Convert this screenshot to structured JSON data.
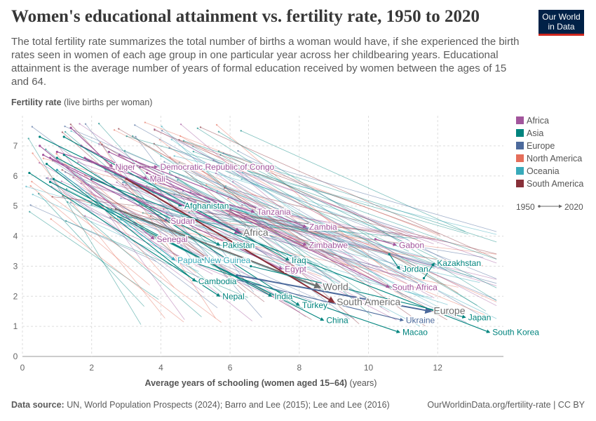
{
  "header": {
    "title": "Women's educational attainment vs. fertility rate, 1950 to 2020",
    "subtitle": "The total fertility rate summarizes the total number of births a woman would have, if she experienced the birth rates seen in women of each age group in one particular year across her childbearing years. Educational attainment is the average number of years of formal education received by women between the ages of 15 and 64.",
    "logo_line1": "Our World",
    "logo_line2": "in Data"
  },
  "footer": {
    "source_label": "Data source:",
    "source_text": "UN, World Population Prospects (2024); Barro and Lee (2015); Lee and Lee (2016)",
    "url": "OurWorldinData.org/fertility-rate | CC BY"
  },
  "chart_data": {
    "type": "scatter",
    "subtype": "connected-arrows",
    "ylabel_bold": "Fertility rate",
    "ylabel_rest": "(live births per woman)",
    "xlabel_bold": "Average years of schooling (women aged 15–64)",
    "xlabel_rest": "(years)",
    "xlim": [
      0,
      13.9
    ],
    "ylim": [
      0,
      8
    ],
    "xticks": [
      0,
      2,
      4,
      6,
      8,
      10,
      12
    ],
    "yticks": [
      0,
      1,
      2,
      3,
      4,
      5,
      6,
      7
    ],
    "grid": true,
    "legend_position": "right",
    "time_legend": {
      "start": "1950",
      "end": "2020"
    },
    "regions": [
      {
        "name": "Africa",
        "color": "#a2559c"
      },
      {
        "name": "Asia",
        "color": "#00847e"
      },
      {
        "name": "Europe",
        "color": "#4c6a9c"
      },
      {
        "name": "North America",
        "color": "#e56e5a"
      },
      {
        "name": "Oceania",
        "color": "#38aaba"
      },
      {
        "name": "South America",
        "color": "#883039"
      }
    ],
    "labeled_series": [
      {
        "name": "Niger",
        "region": "Africa",
        "x1": 1.4,
        "y1": 7.6,
        "x2": 2.6,
        "y2": 6.3
      },
      {
        "name": "Democratic Republic of Congo",
        "region": "Africa",
        "x1": 3.4,
        "y1": 6.3,
        "x2": 3.9,
        "y2": 6.3
      },
      {
        "name": "Mali",
        "region": "Africa",
        "x1": 1.7,
        "y1": 7.0,
        "x2": 3.6,
        "y2": 5.9
      },
      {
        "name": "Afghanistan",
        "region": "Asia",
        "x1": 0.5,
        "y1": 7.3,
        "x2": 4.6,
        "y2": 5.0
      },
      {
        "name": "Tanzania",
        "region": "Africa",
        "x1": 1.0,
        "y1": 6.8,
        "x2": 6.7,
        "y2": 4.8
      },
      {
        "name": "Sudan",
        "region": "Africa",
        "x1": 0.6,
        "y1": 6.7,
        "x2": 4.2,
        "y2": 4.5
      },
      {
        "name": "Zambia",
        "region": "Africa",
        "x1": 2.8,
        "y1": 6.7,
        "x2": 8.2,
        "y2": 4.3
      },
      {
        "name": "Africa",
        "region": "Africa",
        "x1": 1.8,
        "y1": 6.6,
        "x2": 6.3,
        "y2": 4.1
      },
      {
        "name": "Senegal",
        "region": "Africa",
        "x1": 0.5,
        "y1": 7.0,
        "x2": 3.8,
        "y2": 3.9
      },
      {
        "name": "Pakistan",
        "region": "Asia",
        "x1": 1.0,
        "y1": 6.6,
        "x2": 5.7,
        "y2": 3.7
      },
      {
        "name": "Zimbabwe",
        "region": "Africa",
        "x1": 2.5,
        "y1": 6.8,
        "x2": 8.2,
        "y2": 3.7
      },
      {
        "name": "Gabon",
        "region": "Africa",
        "x1": 10.2,
        "y1": 3.9,
        "x2": 10.8,
        "y2": 3.7
      },
      {
        "name": "Papua New Guinea",
        "region": "Oceania",
        "x1": 1.0,
        "y1": 6.2,
        "x2": 4.4,
        "y2": 3.2
      },
      {
        "name": "Iraq",
        "region": "Asia",
        "x1": 1.2,
        "y1": 7.3,
        "x2": 7.7,
        "y2": 3.2
      },
      {
        "name": "Kazakhstan",
        "region": "Asia",
        "x1": 11.6,
        "y1": 2.6,
        "x2": 11.9,
        "y2": 3.1
      },
      {
        "name": "Jordan",
        "region": "Asia",
        "x1": 10.6,
        "y1": 3.4,
        "x2": 10.9,
        "y2": 2.9
      },
      {
        "name": "Egypt",
        "region": "Africa",
        "x1": 0.8,
        "y1": 6.6,
        "x2": 7.5,
        "y2": 2.9
      },
      {
        "name": "Cambodia",
        "region": "Asia",
        "x1": 0.7,
        "y1": 6.4,
        "x2": 5.0,
        "y2": 2.5
      },
      {
        "name": "World",
        "region": "World",
        "x1": 2.7,
        "y1": 4.9,
        "x2": 8.6,
        "y2": 2.3
      },
      {
        "name": "South Africa",
        "region": "Africa",
        "x1": 3.6,
        "y1": 6.1,
        "x2": 10.6,
        "y2": 2.3
      },
      {
        "name": "Nepal",
        "region": "Asia",
        "x1": 0.2,
        "y1": 6.1,
        "x2": 5.7,
        "y2": 2.0
      },
      {
        "name": "India",
        "region": "Asia",
        "x1": 0.9,
        "y1": 5.9,
        "x2": 7.2,
        "y2": 2.0
      },
      {
        "name": "Turkey",
        "region": "Asia",
        "x1": 1.2,
        "y1": 6.7,
        "x2": 8.0,
        "y2": 1.7
      },
      {
        "name": "South America",
        "region": "South America",
        "x1": 3.0,
        "y1": 5.9,
        "x2": 9.0,
        "y2": 1.8
      },
      {
        "name": "Europe",
        "region": "Europe",
        "x1": 6.2,
        "y1": 2.7,
        "x2": 11.8,
        "y2": 1.5
      },
      {
        "name": "Japan",
        "region": "Asia",
        "x1": 6.6,
        "y1": 3.0,
        "x2": 12.8,
        "y2": 1.3
      },
      {
        "name": "China",
        "region": "Asia",
        "x1": 0.8,
        "y1": 5.8,
        "x2": 8.7,
        "y2": 1.2
      },
      {
        "name": "Ukraine",
        "region": "Europe",
        "x1": 6.0,
        "y1": 2.6,
        "x2": 11.0,
        "y2": 1.2
      },
      {
        "name": "Macao",
        "region": "Asia",
        "x1": 4.5,
        "y1": 3.3,
        "x2": 10.9,
        "y2": 0.8
      },
      {
        "name": "South Korea",
        "region": "Asia",
        "x1": 2.0,
        "y1": 5.9,
        "x2": 13.5,
        "y2": 0.8
      }
    ]
  }
}
